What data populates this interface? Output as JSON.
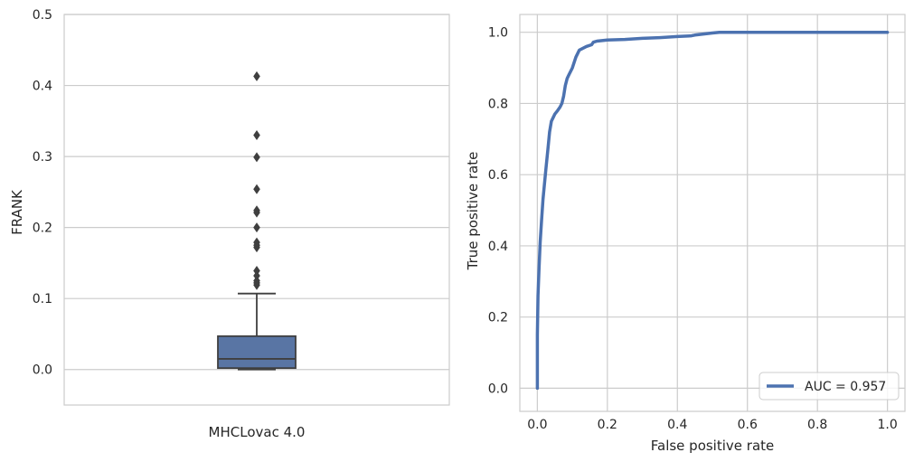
{
  "chart_data": [
    {
      "type": "box",
      "xlabel": "",
      "ylabel": "FRANK",
      "ylim": [
        -0.05,
        0.5
      ],
      "yticks": [
        0.0,
        0.1,
        0.2,
        0.3,
        0.4,
        0.5
      ],
      "ytick_labels": [
        "0.0",
        "0.1",
        "0.2",
        "0.3",
        "0.4",
        "0.5"
      ],
      "categories": [
        "MHCLovac 4.0"
      ],
      "grid": "horizontal",
      "box": {
        "whisker_low": 0.0,
        "q1": 0.002,
        "median": 0.015,
        "q3": 0.047,
        "whisker_high": 0.107,
        "outliers": [
          0.119,
          0.122,
          0.125,
          0.132,
          0.139,
          0.172,
          0.175,
          0.179,
          0.2,
          0.221,
          0.224,
          0.254,
          0.299,
          0.33,
          0.413
        ]
      },
      "colors": {
        "box": "#5975a4",
        "line": "#3f3f3f"
      }
    },
    {
      "type": "line",
      "xlabel": "False positive rate",
      "ylabel": "True positive rate",
      "xlim": [
        -0.05,
        1.05
      ],
      "ylim": [
        -0.065,
        1.05
      ],
      "xticks": [
        0.0,
        0.2,
        0.4,
        0.6,
        0.8,
        1.0
      ],
      "xtick_labels": [
        "0.0",
        "0.2",
        "0.4",
        "0.6",
        "0.8",
        "1.0"
      ],
      "yticks": [
        0.0,
        0.2,
        0.4,
        0.6,
        0.8,
        1.0
      ],
      "ytick_labels": [
        "0.0",
        "0.2",
        "0.4",
        "0.6",
        "0.8",
        "1.0"
      ],
      "grid": "both",
      "legend_position": "bottom-right",
      "series": [
        {
          "name": "AUC = 0.957",
          "color": "#4c72b0",
          "x": [
            0.0,
            0.0,
            0.002,
            0.005,
            0.008,
            0.012,
            0.016,
            0.02,
            0.025,
            0.03,
            0.035,
            0.04,
            0.045,
            0.05,
            0.058,
            0.065,
            0.07,
            0.075,
            0.08,
            0.085,
            0.09,
            0.1,
            0.11,
            0.115,
            0.12,
            0.13,
            0.14,
            0.155,
            0.16,
            0.17,
            0.2,
            0.25,
            0.3,
            0.35,
            0.4,
            0.44,
            0.45,
            0.5,
            0.52,
            0.6,
            0.8,
            1.0
          ],
          "y": [
            0.0,
            0.15,
            0.26,
            0.34,
            0.41,
            0.47,
            0.53,
            0.57,
            0.62,
            0.67,
            0.72,
            0.75,
            0.76,
            0.77,
            0.78,
            0.79,
            0.8,
            0.82,
            0.85,
            0.87,
            0.88,
            0.9,
            0.93,
            0.94,
            0.95,
            0.955,
            0.96,
            0.965,
            0.972,
            0.975,
            0.978,
            0.98,
            0.983,
            0.985,
            0.988,
            0.99,
            0.992,
            0.998,
            1.0,
            1.0,
            1.0,
            1.0
          ]
        }
      ]
    }
  ]
}
